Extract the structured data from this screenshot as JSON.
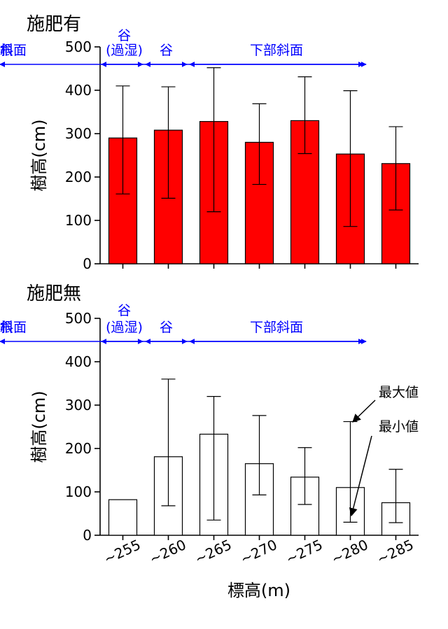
{
  "chart_data": [
    {
      "type": "bar",
      "title": "施肥有",
      "ylabel": "樹高(cm)",
      "ylim": [
        0,
        500
      ],
      "yticks": [
        0,
        100,
        200,
        300,
        400,
        500
      ],
      "categories": [
        "~255",
        "~260",
        "~265",
        "~270",
        "~275",
        "~280",
        "~285"
      ],
      "values": [
        290,
        308,
        328,
        280,
        330,
        253,
        231
      ],
      "err_max": [
        410,
        408,
        452,
        369,
        431,
        399,
        316
      ],
      "err_min": [
        161,
        151,
        120,
        183,
        254,
        86,
        124
      ],
      "bar_color": "#ff0000",
      "zones": [
        {
          "label": "谷",
          "label2": "(過湿)",
          "start": 0,
          "end": 1
        },
        {
          "label": "谷",
          "start": 1,
          "end": 2
        },
        {
          "label": "下部斜面",
          "start": 2,
          "end": 4
        },
        {
          "label": "上部斜面",
          "start": 4,
          "end": 6
        },
        {
          "label": "尾根",
          "start": 6,
          "end": 7
        }
      ]
    },
    {
      "type": "bar",
      "title": "施肥無",
      "ylabel": "樹高(cm)",
      "xlabel": "標高(m)",
      "ylim": [
        0,
        500
      ],
      "yticks": [
        0,
        100,
        200,
        300,
        400,
        500
      ],
      "categories": [
        "~255",
        "~260",
        "~265",
        "~270",
        "~275",
        "~280",
        "~285"
      ],
      "values": [
        82,
        181,
        233,
        165,
        134,
        110,
        75
      ],
      "err_max": [
        null,
        360,
        320,
        276,
        202,
        262,
        152
      ],
      "err_min": [
        null,
        68,
        35,
        93,
        71,
        30,
        29
      ],
      "bar_color": "#ffffff",
      "zones": [
        {
          "label": "谷",
          "label2": "(過湿)",
          "start": 0,
          "end": 1
        },
        {
          "label": "谷",
          "start": 1,
          "end": 2
        },
        {
          "label": "下部斜面",
          "start": 2,
          "end": 4
        },
        {
          "label": "上部斜面",
          "start": 4,
          "end": 6
        },
        {
          "label": "尾根",
          "start": 6,
          "end": 7
        }
      ],
      "annotations": [
        "最大値",
        "最小値"
      ]
    }
  ],
  "colors": {
    "zone": "#0000ff",
    "axis": "#000000",
    "bar_fill_top": "#ff0000",
    "bar_fill_bottom": "#ffffff"
  }
}
